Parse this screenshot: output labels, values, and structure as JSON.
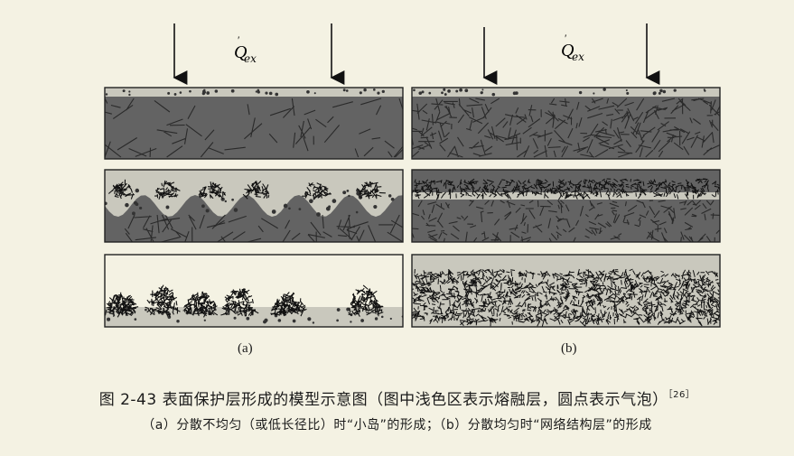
{
  "figure": {
    "heat_label": {
      "symbol": "Q",
      "subscript": "ex"
    },
    "panel_a_label": "(a)",
    "panel_b_label": "(b)"
  },
  "caption": {
    "title": "图 2-43   表面保护层形成的模型示意图（图中浅色区表示熔融层，圆点表示气泡）",
    "ref": "［26］",
    "subtitle": "（a）分散不均匀（或低长径比）时“小岛”的形成；（b）分散均匀时“网络结构层”的形成"
  },
  "colors": {
    "background": "#f4f2e3",
    "matrix": "#636363",
    "melt_layer": "#c9c8bd",
    "char": "#111111"
  }
}
